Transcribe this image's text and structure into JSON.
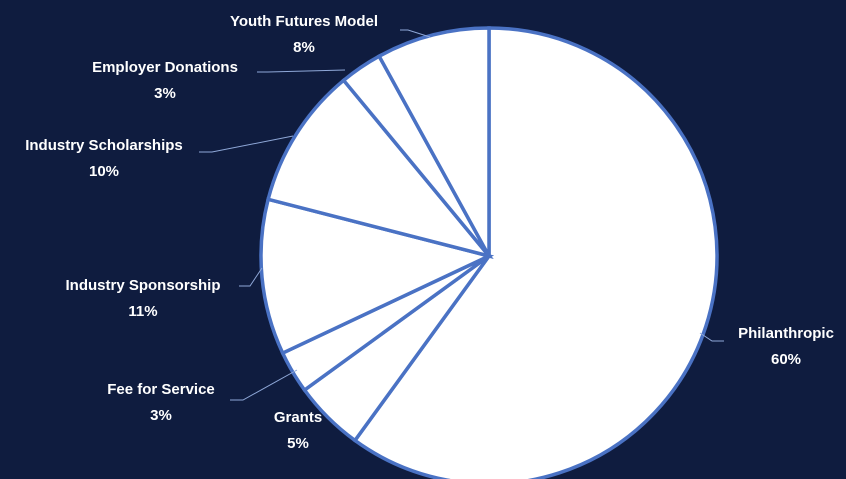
{
  "chart_data": {
    "type": "pie",
    "title": "",
    "slices": [
      {
        "label": "Philanthropic",
        "value": 60,
        "display": "60%"
      },
      {
        "label": "Grants",
        "value": 5,
        "display": "5%"
      },
      {
        "label": "Fee for Service",
        "value": 3,
        "display": "3%"
      },
      {
        "label": "Industry Sponsorship",
        "value": 11,
        "display": "11%"
      },
      {
        "label": "Industry Scholarships",
        "value": 10,
        "display": "10%"
      },
      {
        "label": "Employer Donations",
        "value": 3,
        "display": "3%"
      },
      {
        "label": "Youth Futures Model",
        "value": 8,
        "display": "8%"
      }
    ],
    "start_angle": "12 o'clock",
    "direction": "clockwise",
    "legend": "none (data labels beside slices)",
    "colors": {
      "background": "#0f1c3f",
      "slice_fill": "#ffffff",
      "slice_border": "#4a72c4",
      "label_text": "#ffffff"
    }
  }
}
